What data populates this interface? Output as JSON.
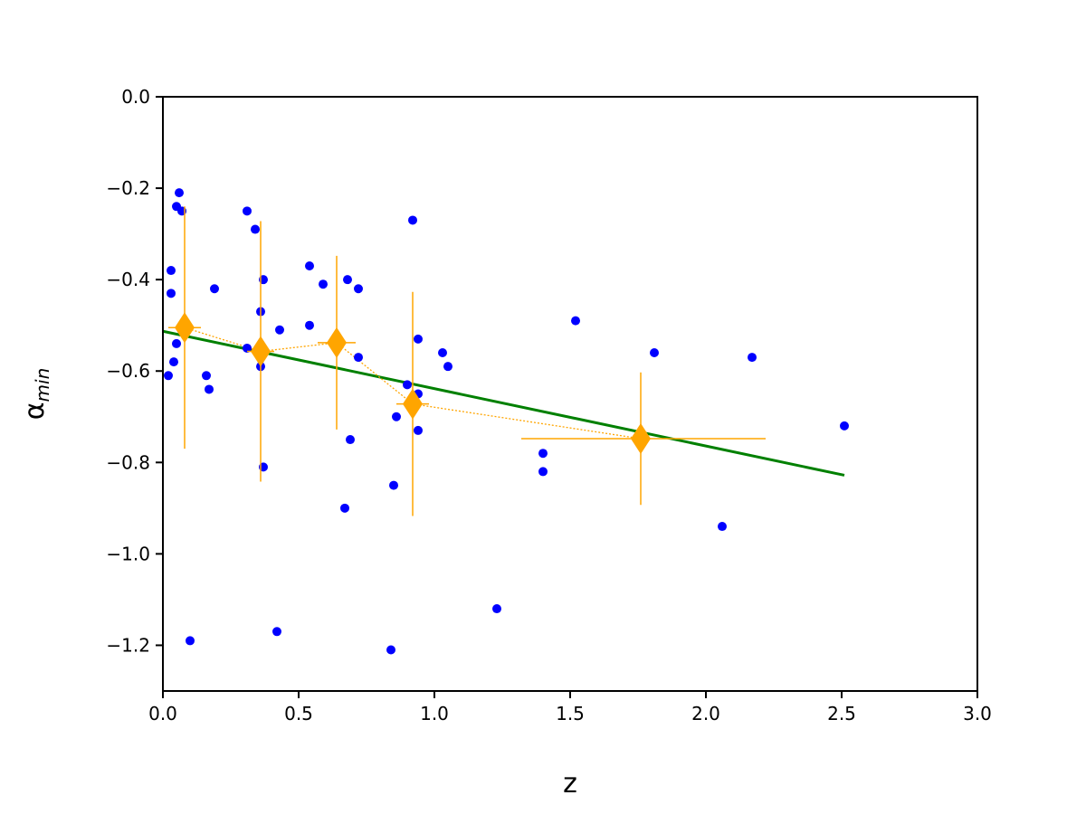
{
  "chart_data": {
    "type": "scatter",
    "xlabel": "z",
    "ylabel": {
      "main": "α",
      "sub": "min"
    },
    "xlim": [
      0.0,
      3.0
    ],
    "ylim": [
      -1.3,
      0.0
    ],
    "xticks": [
      0.0,
      0.5,
      1.0,
      1.5,
      2.0,
      2.5,
      3.0
    ],
    "xtick_labels": [
      "0.0",
      "0.5",
      "1.0",
      "1.5",
      "2.0",
      "2.5",
      "3.0"
    ],
    "yticks": [
      0.0,
      -0.2,
      -0.4,
      -0.6,
      -0.8,
      -1.0,
      -1.2
    ],
    "ytick_labels": [
      "0.0",
      "−0.2",
      "−0.4",
      "−0.6",
      "−0.8",
      "−1.0",
      "−1.2"
    ],
    "grid": false,
    "series": [
      {
        "kind": "points",
        "color": "#0000ff",
        "points": [
          [
            0.02,
            -0.61
          ],
          [
            0.03,
            -0.38
          ],
          [
            0.03,
            -0.43
          ],
          [
            0.04,
            -0.58
          ],
          [
            0.05,
            -0.54
          ],
          [
            0.05,
            -0.24
          ],
          [
            0.06,
            -0.21
          ],
          [
            0.07,
            -0.25
          ],
          [
            0.1,
            -1.19
          ],
          [
            0.16,
            -0.61
          ],
          [
            0.17,
            -0.64
          ],
          [
            0.19,
            -0.42
          ],
          [
            0.31,
            -0.25
          ],
          [
            0.31,
            -0.55
          ],
          [
            0.34,
            -0.29
          ],
          [
            0.36,
            -0.47
          ],
          [
            0.36,
            -0.59
          ],
          [
            0.37,
            -0.4
          ],
          [
            0.37,
            -0.81
          ],
          [
            0.42,
            -1.17
          ],
          [
            0.43,
            -0.51
          ],
          [
            0.54,
            -0.37
          ],
          [
            0.54,
            -0.5
          ],
          [
            0.59,
            -0.41
          ],
          [
            0.67,
            -0.9
          ],
          [
            0.68,
            -0.4
          ],
          [
            0.69,
            -0.75
          ],
          [
            0.72,
            -0.42
          ],
          [
            0.72,
            -0.57
          ],
          [
            0.84,
            -1.21
          ],
          [
            0.85,
            -0.85
          ],
          [
            0.86,
            -0.7
          ],
          [
            0.9,
            -0.63
          ],
          [
            0.92,
            -0.27
          ],
          [
            0.94,
            -0.53
          ],
          [
            0.94,
            -0.65
          ],
          [
            0.94,
            -0.73
          ],
          [
            1.03,
            -0.56
          ],
          [
            1.05,
            -0.59
          ],
          [
            1.23,
            -1.12
          ],
          [
            1.4,
            -0.78
          ],
          [
            1.4,
            -0.82
          ],
          [
            1.52,
            -0.49
          ],
          [
            1.81,
            -0.56
          ],
          [
            2.06,
            -0.94
          ],
          [
            2.17,
            -0.57
          ],
          [
            2.51,
            -0.72
          ]
        ]
      },
      {
        "kind": "binned-means",
        "color": "#ffa500",
        "points": [
          {
            "x": 0.08,
            "y": -0.505,
            "xerr": [
              0.06,
              0.06
            ],
            "yerr": [
              0.265,
              0.265
            ]
          },
          {
            "x": 0.36,
            "y": -0.557,
            "xerr": [
              0.05,
              0.05
            ],
            "yerr": [
              0.285,
              0.285
            ]
          },
          {
            "x": 0.64,
            "y": -0.538,
            "xerr": [
              0.07,
              0.07
            ],
            "yerr": [
              0.19,
              0.19
            ]
          },
          {
            "x": 0.92,
            "y": -0.672,
            "xerr": [
              0.06,
              0.06
            ],
            "yerr": [
              0.245,
              0.245
            ]
          },
          {
            "x": 1.76,
            "y": -0.748,
            "xerr": [
              0.44,
              0.46
            ],
            "yerr": [
              0.145,
              0.145
            ]
          }
        ]
      },
      {
        "kind": "fit-line",
        "color": "#008000",
        "points": [
          [
            0.0,
            -0.513
          ],
          [
            2.51,
            -0.828
          ]
        ]
      }
    ]
  }
}
